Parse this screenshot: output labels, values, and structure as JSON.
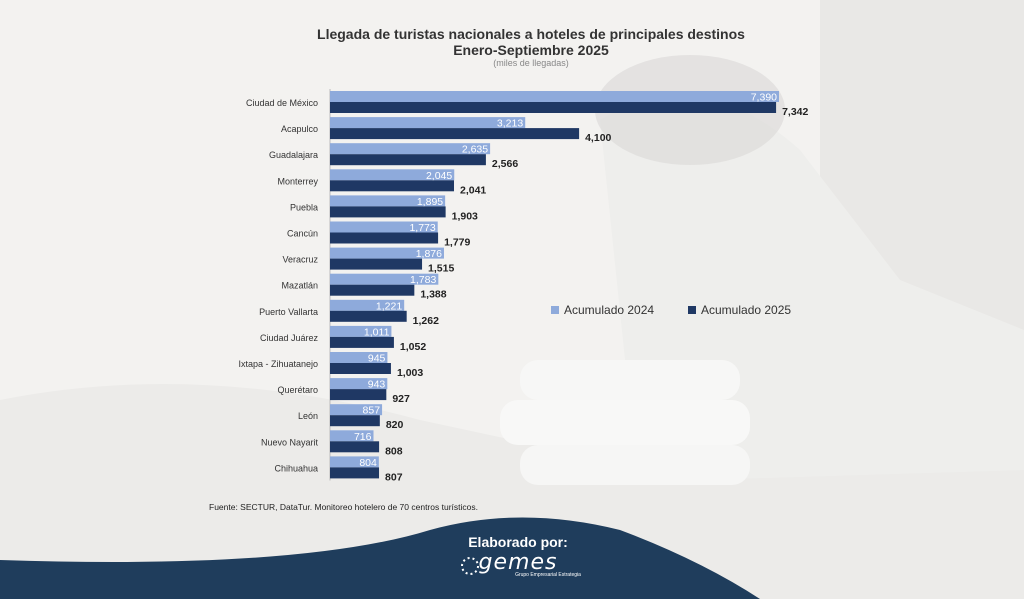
{
  "title": "Llegada de turistas nacionales a hoteles de principales destinos",
  "subtitle": "Enero-Septiembre 2025",
  "unit_note": "(miles de llegadas)",
  "source": "Fuente: SECTUR, DataTur. Monitoreo hotelero de 70 centros turísticos.",
  "footer": {
    "label": "Elaborado por:",
    "logo_text": "gemes",
    "logo_sub": "Grupo Empresarial Estrategia"
  },
  "colors": {
    "series_2024": "#8eaadb",
    "series_2025": "#1f3864",
    "footer_bg": "#1f3d5c"
  },
  "chart_data": {
    "type": "bar",
    "orientation": "horizontal",
    "categories": [
      "Ciudad de México",
      "Acapulco",
      "Guadalajara",
      "Monterrey",
      "Puebla",
      "Cancún",
      "Veracruz",
      "Mazatlán",
      "Puerto Vallarta",
      "Ciudad Juárez",
      "Ixtapa - Zihuatanejo",
      "Querétaro",
      "León",
      "Nuevo Nayarit",
      "Chihuahua"
    ],
    "series": [
      {
        "name": "Acumulado 2024",
        "values": [
          7390,
          3213,
          2635,
          2045,
          1895,
          1773,
          1876,
          1783,
          1221,
          1011,
          945,
          943,
          857,
          716,
          804
        ],
        "labels": [
          "7,390",
          "3,213",
          "2,635",
          "2,045",
          "1,895",
          "1,773",
          "1,876",
          "1,783",
          "1,221",
          "1,011",
          "945",
          "943",
          "857",
          "716",
          "804"
        ]
      },
      {
        "name": "Acumulado 2025",
        "values": [
          7342,
          4100,
          2566,
          2041,
          1903,
          1779,
          1515,
          1388,
          1262,
          1052,
          1003,
          927,
          820,
          808,
          807
        ],
        "labels": [
          "7,342",
          "4,100",
          "2,566",
          "2,041",
          "1,903",
          "1,779",
          "1,515",
          "1,388",
          "1,262",
          "1,052",
          "1,003",
          "927",
          "820",
          "808",
          "807"
        ]
      }
    ],
    "legend": "right"
  }
}
